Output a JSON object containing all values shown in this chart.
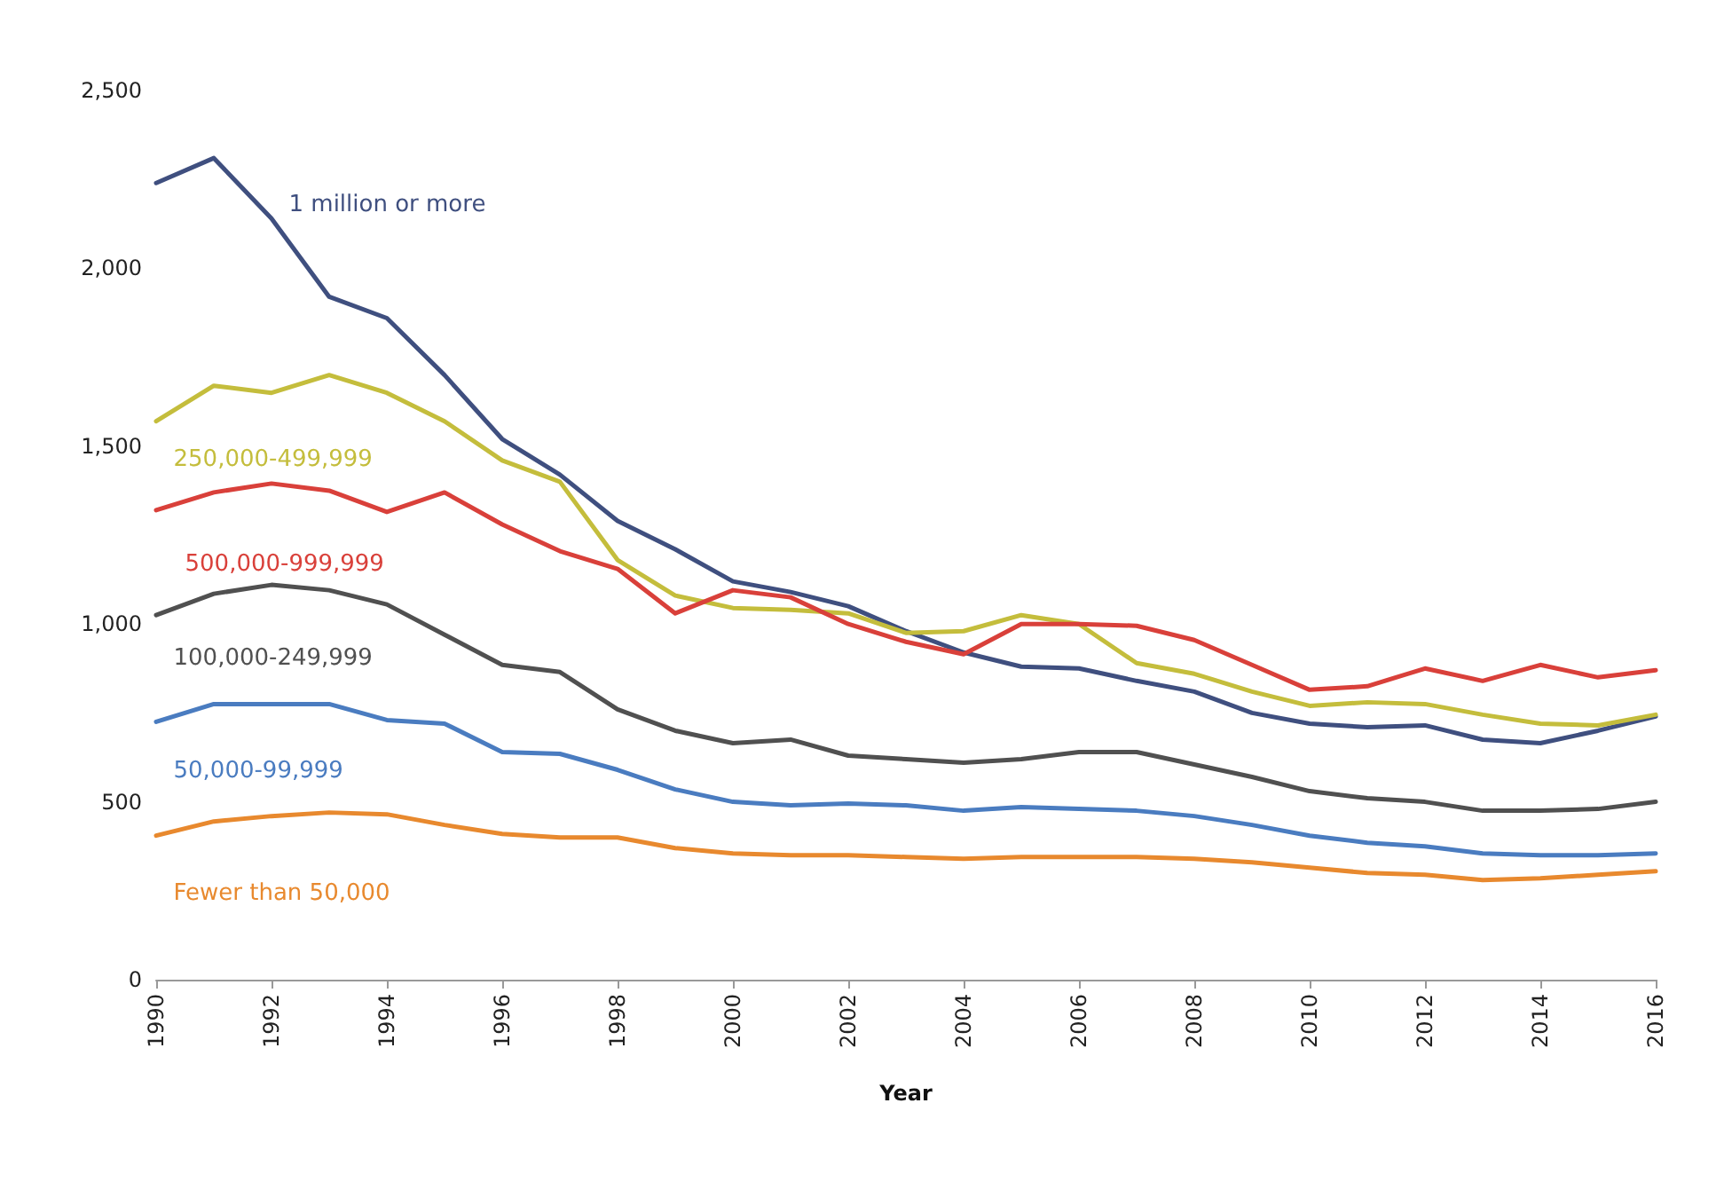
{
  "chart_data": {
    "type": "line",
    "xlabel": "Year",
    "x": [
      1990,
      1991,
      1992,
      1993,
      1994,
      1995,
      1996,
      1997,
      1998,
      1999,
      2000,
      2001,
      2002,
      2003,
      2004,
      2005,
      2006,
      2007,
      2008,
      2009,
      2010,
      2011,
      2012,
      2013,
      2014,
      2015,
      2016
    ],
    "xlim": [
      1990,
      2016
    ],
    "xticks": [
      1990,
      1992,
      1994,
      1996,
      1998,
      2000,
      2002,
      2004,
      2006,
      2008,
      2010,
      2012,
      2014,
      2016
    ],
    "ylim": [
      0,
      2500
    ],
    "yticks": [
      {
        "value": 0,
        "label": "0"
      },
      {
        "value": 500,
        "label": "500"
      },
      {
        "value": 1000,
        "label": "1,000"
      },
      {
        "value": 1500,
        "label": "1,500"
      },
      {
        "value": 2000,
        "label": "2,000"
      },
      {
        "value": 2500,
        "label": "2,500"
      }
    ],
    "grid": false,
    "legend": false,
    "marker": "none",
    "line_style": "solid",
    "series": [
      {
        "name": "1 million or more",
        "color": "#3f4f7f",
        "values": [
          2240,
          2310,
          2140,
          1920,
          1860,
          1700,
          1520,
          1420,
          1290,
          1210,
          1120,
          1090,
          1050,
          980,
          920,
          880,
          875,
          840,
          810,
          750,
          720,
          710,
          715,
          675,
          665,
          700,
          740
        ]
      },
      {
        "name": "250,000-499,999",
        "color": "#c4bd3c",
        "values": [
          1570,
          1670,
          1650,
          1700,
          1650,
          1570,
          1460,
          1400,
          1180,
          1080,
          1045,
          1040,
          1030,
          975,
          980,
          1025,
          1000,
          890,
          860,
          810,
          770,
          780,
          775,
          745,
          720,
          715,
          745
        ]
      },
      {
        "name": "500,000-999,999",
        "color": "#d9403a",
        "values": [
          1320,
          1370,
          1395,
          1375,
          1315,
          1370,
          1280,
          1205,
          1155,
          1030,
          1095,
          1075,
          1000,
          950,
          915,
          1000,
          1000,
          995,
          955,
          885,
          815,
          825,
          875,
          840,
          885,
          850,
          870
        ]
      },
      {
        "name": "100,000-249,999",
        "color": "#505050",
        "values": [
          1025,
          1085,
          1110,
          1095,
          1055,
          970,
          885,
          865,
          760,
          700,
          665,
          675,
          630,
          620,
          610,
          620,
          640,
          640,
          605,
          570,
          530,
          510,
          500,
          475,
          475,
          480,
          500
        ]
      },
      {
        "name": "50,000-99,999",
        "color": "#4a7cc0",
        "values": [
          725,
          775,
          775,
          775,
          730,
          720,
          640,
          635,
          590,
          535,
          500,
          490,
          495,
          490,
          475,
          485,
          480,
          475,
          460,
          435,
          405,
          385,
          375,
          355,
          350,
          350,
          355
        ]
      },
      {
        "name": "Fewer than 50,000",
        "color": "#e8892e",
        "values": [
          405,
          445,
          460,
          470,
          465,
          435,
          410,
          400,
          400,
          370,
          355,
          350,
          350,
          345,
          340,
          345,
          345,
          345,
          340,
          330,
          315,
          300,
          295,
          280,
          285,
          295,
          305
        ]
      }
    ]
  }
}
